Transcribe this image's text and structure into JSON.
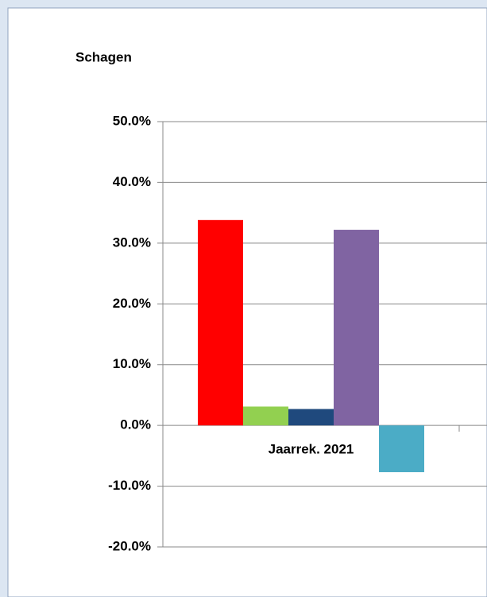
{
  "chart_data": {
    "type": "bar",
    "title": "Schagen",
    "categories": [
      "Jaarrek. 2021"
    ],
    "series": [
      {
        "color": "#ff0000",
        "values": [
          33.8
        ]
      },
      {
        "color": "#92d050",
        "values": [
          3.1
        ]
      },
      {
        "color": "#1f497d",
        "values": [
          2.7
        ]
      },
      {
        "color": "#8064a2",
        "values": [
          32.2
        ]
      },
      {
        "color": "#4bacc6",
        "values": [
          -7.7
        ]
      }
    ],
    "ylim": [
      -20,
      50
    ],
    "yticks": [
      {
        "value": -20,
        "label": "-20.0%"
      },
      {
        "value": -10,
        "label": "-10.0%"
      },
      {
        "value": 0,
        "label": "0.0%"
      },
      {
        "value": 10,
        "label": "10.0%"
      },
      {
        "value": 20,
        "label": "20.0%"
      },
      {
        "value": 30,
        "label": "30.0%"
      },
      {
        "value": 40,
        "label": "40.0%"
      },
      {
        "value": 50,
        "label": "50.0%"
      }
    ],
    "grid": true
  }
}
